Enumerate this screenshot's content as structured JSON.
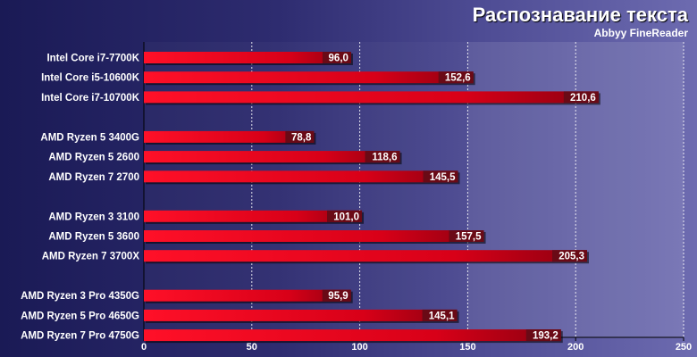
{
  "chart_data": {
    "type": "bar",
    "orientation": "horizontal",
    "title": "Распознавание текста",
    "subtitle": "Abbyy FineReader",
    "xlabel": "",
    "ylabel": "",
    "xlim": [
      0,
      250
    ],
    "x_ticks": [
      "0",
      "50",
      "100",
      "150",
      "200",
      "250"
    ],
    "grid": true,
    "bar_color": "#e8001a",
    "value_label_bg": "#6a0a16",
    "groups": [
      {
        "categories": [
          "Intel Core i7-7700K",
          "Intel Core i5-10600K",
          "Intel Core i7-10700K"
        ],
        "values": [
          96.0,
          152.6,
          210.6
        ],
        "value_labels": [
          "96,0",
          "152,6",
          "210,6"
        ]
      },
      {
        "categories": [
          "AMD Ryzen 5 3400G",
          "AMD Ryzen 5 2600",
          "AMD Ryzen 7 2700"
        ],
        "values": [
          78.8,
          118.6,
          145.5
        ],
        "value_labels": [
          "78,8",
          "118,6",
          "145,5"
        ]
      },
      {
        "categories": [
          "AMD Ryzen 3 3100",
          "AMD Ryzen 5 3600",
          "AMD Ryzen 7 3700X"
        ],
        "values": [
          101.0,
          157.5,
          205.3
        ],
        "value_labels": [
          "101,0",
          "157,5",
          "205,3"
        ]
      },
      {
        "categories": [
          "AMD Ryzen 3 Pro 4350G",
          "AMD Ryzen 5 Pro 4650G",
          "AMD Ryzen 7 Pro 4750G"
        ],
        "values": [
          95.9,
          145.1,
          193.2
        ],
        "value_labels": [
          "95,9",
          "145,1",
          "193,2"
        ]
      }
    ]
  }
}
